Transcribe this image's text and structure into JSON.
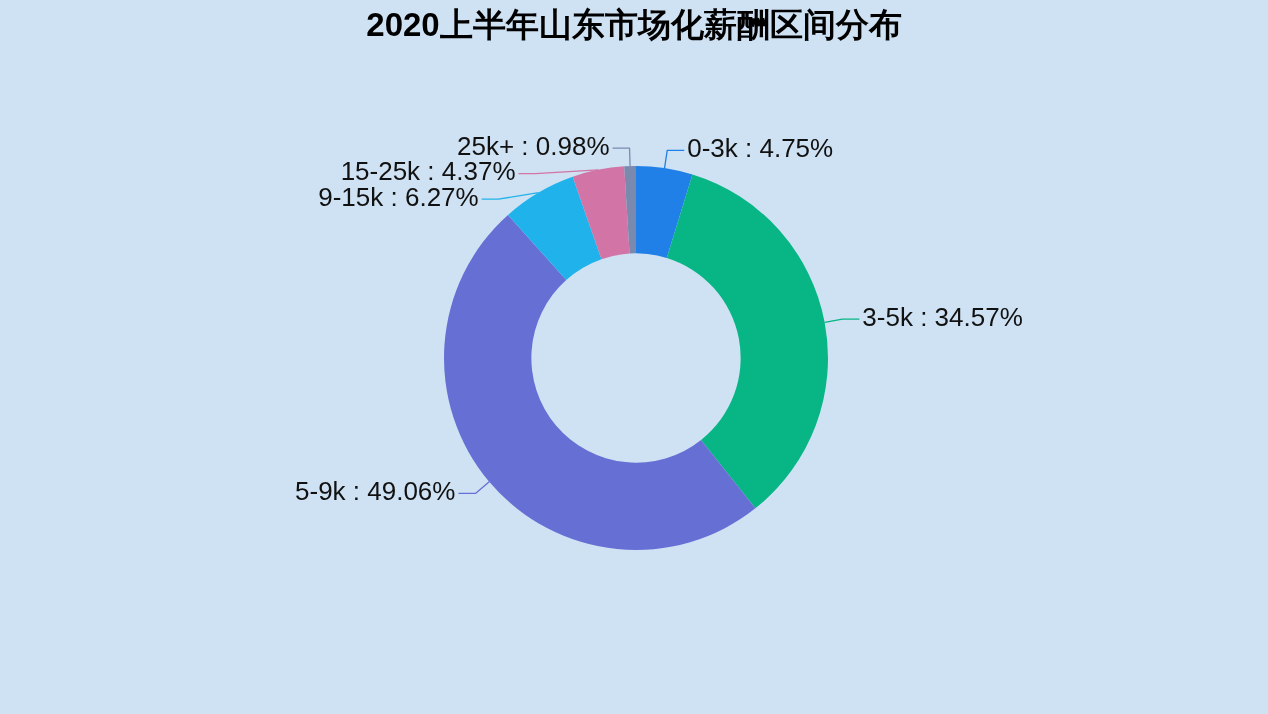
{
  "chart_data": {
    "type": "donut",
    "title": "2020上半年山东市场化薪酬区间分布",
    "categories": [
      "0-3k",
      "3-5k",
      "5-9k",
      "9-15k",
      "15-25k",
      "25k+"
    ],
    "values": [
      4.75,
      34.57,
      49.06,
      6.27,
      4.37,
      0.98
    ],
    "colors": [
      "#2080e8",
      "#07b585",
      "#666fd4",
      "#20b2ea",
      "#d275a6",
      "#7a8aaf"
    ],
    "value_labels": [
      "4.75%",
      "34.57%",
      "49.06%",
      "6.27%",
      "4.37%",
      "0.98%"
    ]
  }
}
